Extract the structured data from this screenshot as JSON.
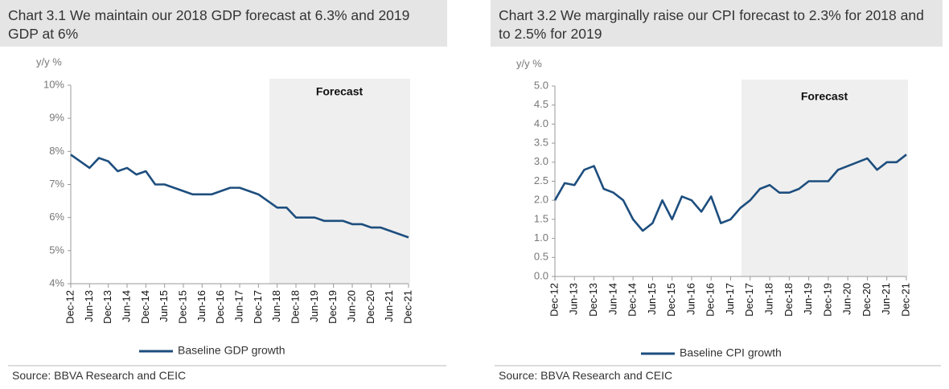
{
  "chart_data": [
    {
      "type": "line",
      "title": "Chart 3.1 We maintain our 2018 GDP forecast at 6.3% and 2019 GDP at 6%",
      "y_label": "y/y %",
      "annotation": "Forecast",
      "source": "Source: BBVA Research and CEIC",
      "categories": [
        "Dec-12",
        null,
        "Jun-13",
        null,
        "Dec-13",
        null,
        "Jun-14",
        null,
        "Dec-14",
        null,
        "Jun-15",
        null,
        "Dec-15",
        null,
        "Jun-16",
        null,
        "Dec-16",
        null,
        "Jun-17",
        null,
        "Dec-17",
        null,
        "Jun-18",
        null,
        "Dec-18",
        null,
        "Jun-19",
        null,
        "Dec-19",
        null,
        "Jun-20",
        null,
        "Dec-20",
        null,
        "Jun-21",
        null,
        "Dec-21"
      ],
      "series": [
        {
          "name": "Baseline GDP growth",
          "color": "#1d4e7e",
          "values": [
            7.9,
            7.7,
            7.5,
            7.8,
            7.7,
            7.4,
            7.5,
            7.3,
            7.4,
            7.0,
            7.0,
            6.9,
            6.8,
            6.7,
            6.7,
            6.7,
            6.8,
            6.9,
            6.9,
            6.8,
            6.7,
            6.5,
            6.3,
            6.3,
            6.0,
            6.0,
            6.0,
            5.9,
            5.9,
            5.9,
            5.8,
            5.8,
            5.7,
            5.7,
            5.6,
            5.5,
            5.4
          ]
        }
      ],
      "ylim": [
        4,
        10
      ],
      "yticks": [
        {
          "value": 4,
          "label": "4%"
        },
        {
          "value": 5,
          "label": "5%"
        },
        {
          "value": 6,
          "label": "6%"
        },
        {
          "value": 7,
          "label": "7%"
        },
        {
          "value": 8,
          "label": "8%"
        },
        {
          "value": 9,
          "label": "9%"
        },
        {
          "value": 10,
          "label": "10%"
        }
      ],
      "grid": false
    },
    {
      "type": "line",
      "title": "Chart 3.2 We marginally raise our CPI forecast to 2.3% for 2018 and to 2.5% for 2019",
      "y_label": "y/y %",
      "annotation": "Forecast",
      "source": "Source: BBVA Research and CEIC",
      "categories": [
        "Dec-12",
        null,
        "Jun-13",
        null,
        "Dec-13",
        null,
        "Jun-14",
        null,
        "Dec-14",
        null,
        "Jun-15",
        null,
        "Dec-15",
        null,
        "Jun-16",
        null,
        "Dec-16",
        null,
        "Jun-17",
        null,
        "Dec-17",
        null,
        "Jun-18",
        null,
        "Dec-18",
        null,
        "Jun-19",
        null,
        "Dec-19",
        null,
        "Jun-20",
        null,
        "Dec-20",
        null,
        "Jun-21",
        null,
        "Dec-21"
      ],
      "series": [
        {
          "name": "Baseline CPI growth",
          "color": "#1d4e7e",
          "values": [
            2.0,
            2.45,
            2.4,
            2.8,
            2.9,
            2.3,
            2.2,
            2.0,
            1.5,
            1.2,
            1.4,
            2.0,
            1.5,
            2.1,
            2.0,
            1.7,
            2.1,
            1.4,
            1.5,
            1.8,
            2.0,
            2.3,
            2.4,
            2.2,
            2.2,
            2.3,
            2.5,
            2.5,
            2.5,
            2.8,
            2.9,
            3.0,
            3.1,
            2.8,
            3.0,
            3.0,
            3.2
          ]
        }
      ],
      "ylim": [
        0,
        5
      ],
      "yticks": [
        {
          "value": 0,
          "label": "0.0"
        },
        {
          "value": 0.5,
          "label": "0.5"
        },
        {
          "value": 1,
          "label": "1.0"
        },
        {
          "value": 1.5,
          "label": "1.5"
        },
        {
          "value": 2,
          "label": "2.0"
        },
        {
          "value": 2.5,
          "label": "2.5"
        },
        {
          "value": 3,
          "label": "3.0"
        },
        {
          "value": 3.5,
          "label": "3.5"
        },
        {
          "value": 4,
          "label": "4.0"
        },
        {
          "value": 4.5,
          "label": "4.5"
        },
        {
          "value": 5,
          "label": "5.0"
        }
      ],
      "grid": false
    }
  ]
}
